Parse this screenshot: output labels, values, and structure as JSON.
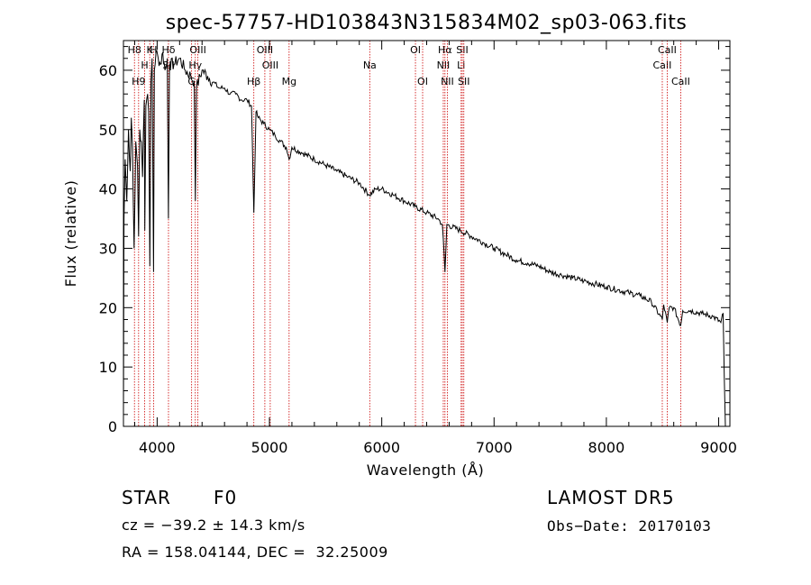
{
  "chart_data": {
    "type": "line",
    "title": "spec-57757-HD103843N315834M02_sp03-063.fits",
    "xlabel": "Wavelength (Å)",
    "ylabel": "Flux (relative)",
    "xlim": [
      3700,
      9100
    ],
    "ylim": [
      0,
      65
    ],
    "xticks": [
      4000,
      5000,
      6000,
      7000,
      8000,
      9000
    ],
    "yticks": [
      0,
      10,
      20,
      30,
      40,
      50,
      60
    ],
    "grid": false,
    "series": [
      {
        "color": "#000000",
        "points": [
          [
            3700,
            2
          ],
          [
            3705,
            35
          ],
          [
            3715,
            45
          ],
          [
            3730,
            38
          ],
          [
            3745,
            50
          ],
          [
            3760,
            43
          ],
          [
            3770,
            52
          ],
          [
            3780,
            47
          ],
          [
            3795,
            30
          ],
          [
            3810,
            48
          ],
          [
            3825,
            44
          ],
          [
            3835,
            32
          ],
          [
            3845,
            50
          ],
          [
            3860,
            48
          ],
          [
            3870,
            42
          ],
          [
            3885,
            55
          ],
          [
            3890,
            33
          ],
          [
            3900,
            54
          ],
          [
            3915,
            56
          ],
          [
            3925,
            53
          ],
          [
            3935,
            27
          ],
          [
            3945,
            58
          ],
          [
            3955,
            62
          ],
          [
            3968,
            26
          ],
          [
            3975,
            60
          ],
          [
            3990,
            63
          ],
          [
            4010,
            62
          ],
          [
            4030,
            61
          ],
          [
            4050,
            63
          ],
          [
            4070,
            60
          ],
          [
            4090,
            62
          ],
          [
            4100,
            35
          ],
          [
            4110,
            61
          ],
          [
            4150,
            61
          ],
          [
            4200,
            62
          ],
          [
            4250,
            60
          ],
          [
            4300,
            59
          ],
          [
            4330,
            58
          ],
          [
            4340,
            38
          ],
          [
            4350,
            57
          ],
          [
            4400,
            60
          ],
          [
            4450,
            59
          ],
          [
            4500,
            58
          ],
          [
            4550,
            57
          ],
          [
            4600,
            57
          ],
          [
            4650,
            56
          ],
          [
            4700,
            56
          ],
          [
            4750,
            55
          ],
          [
            4800,
            55
          ],
          [
            4840,
            54
          ],
          [
            4861,
            36
          ],
          [
            4880,
            53
          ],
          [
            4900,
            52
          ],
          [
            4950,
            51
          ],
          [
            5000,
            50
          ],
          [
            5050,
            49
          ],
          [
            5100,
            48
          ],
          [
            5150,
            47
          ],
          [
            5175,
            45
          ],
          [
            5200,
            47
          ],
          [
            5300,
            46
          ],
          [
            5400,
            45
          ],
          [
            5500,
            44
          ],
          [
            5600,
            43
          ],
          [
            5700,
            42
          ],
          [
            5800,
            41
          ],
          [
            5890,
            39
          ],
          [
            5950,
            40
          ],
          [
            6000,
            40
          ],
          [
            6100,
            39
          ],
          [
            6200,
            38
          ],
          [
            6300,
            37
          ],
          [
            6400,
            36
          ],
          [
            6500,
            35
          ],
          [
            6540,
            34
          ],
          [
            6563,
            26
          ],
          [
            6580,
            34
          ],
          [
            6700,
            33
          ],
          [
            6800,
            32
          ],
          [
            6900,
            31
          ],
          [
            7000,
            30
          ],
          [
            7100,
            29
          ],
          [
            7200,
            28
          ],
          [
            7300,
            27.5
          ],
          [
            7400,
            27
          ],
          [
            7500,
            26
          ],
          [
            7600,
            25.5
          ],
          [
            7700,
            25
          ],
          [
            7800,
            24.5
          ],
          [
            7900,
            24
          ],
          [
            8000,
            23.5
          ],
          [
            8100,
            23
          ],
          [
            8200,
            22.5
          ],
          [
            8300,
            22
          ],
          [
            8400,
            21
          ],
          [
            8498,
            18
          ],
          [
            8510,
            20.5
          ],
          [
            8542,
            17.5
          ],
          [
            8560,
            20
          ],
          [
            8600,
            20
          ],
          [
            8662,
            17
          ],
          [
            8680,
            19.5
          ],
          [
            8750,
            19.5
          ],
          [
            8850,
            19
          ],
          [
            8950,
            18.5
          ],
          [
            9020,
            17.5
          ],
          [
            9040,
            19
          ],
          [
            9050,
            8
          ],
          [
            9060,
            0
          ]
        ]
      }
    ],
    "line_marks": [
      {
        "w": 3798,
        "rows": [
          {
            "label": "H8",
            "row": 0
          }
        ]
      },
      {
        "w": 3835,
        "rows": [
          {
            "label": "H9",
            "row": 2
          }
        ]
      },
      {
        "w": 3889,
        "rows": [
          {
            "label": "H",
            "row": 1
          }
        ]
      },
      {
        "w": 3934,
        "rows": [
          {
            "label": "K",
            "row": 0
          }
        ]
      },
      {
        "w": 3968,
        "rows": [
          {
            "label": "H",
            "row": 0
          }
        ]
      },
      {
        "w": 4101,
        "rows": [
          {
            "label": "Hδ",
            "row": 0
          },
          {
            "label": "SII",
            "row": 1
          }
        ]
      },
      {
        "w": 4307,
        "rows": [
          {
            "label": "G",
            "row": 2
          }
        ]
      },
      {
        "w": 4340,
        "rows": [
          {
            "label": "Hγ",
            "row": 1
          }
        ]
      },
      {
        "w": 4363,
        "rows": [
          {
            "label": "OIII",
            "row": 0
          }
        ]
      },
      {
        "w": 4861,
        "rows": [
          {
            "label": "Hβ",
            "row": 2
          }
        ]
      },
      {
        "w": 4959,
        "rows": [
          {
            "label": "OIII",
            "row": 0
          }
        ]
      },
      {
        "w": 5007,
        "rows": [
          {
            "label": "OIII",
            "row": 1
          }
        ]
      },
      {
        "w": 5175,
        "rows": [
          {
            "label": "Mg",
            "row": 2
          }
        ]
      },
      {
        "w": 5893,
        "rows": [
          {
            "label": "Na",
            "row": 1
          }
        ]
      },
      {
        "w": 6300,
        "rows": [
          {
            "label": "OI",
            "row": 0
          }
        ]
      },
      {
        "w": 6364,
        "rows": [
          {
            "label": "OI",
            "row": 2
          }
        ]
      },
      {
        "w": 6548,
        "rows": [
          {
            "label": "NII",
            "row": 1
          }
        ]
      },
      {
        "w": 6563,
        "rows": [
          {
            "label": "Hα",
            "row": 0
          }
        ]
      },
      {
        "w": 6584,
        "rows": [
          {
            "label": "NII",
            "row": 2
          }
        ]
      },
      {
        "w": 6707,
        "rows": [
          {
            "label": "Li",
            "row": 1
          }
        ]
      },
      {
        "w": 6717,
        "rows": [
          {
            "label": "SII",
            "row": 0
          }
        ]
      },
      {
        "w": 6731,
        "rows": [
          {
            "label": "SII",
            "row": 2
          }
        ]
      },
      {
        "w": 8498,
        "rows": [
          {
            "label": "CaII",
            "row": 1
          }
        ]
      },
      {
        "w": 8542,
        "rows": [
          {
            "label": "CaII",
            "row": 0
          }
        ]
      },
      {
        "w": 8662,
        "rows": [
          {
            "label": "CaII",
            "row": 2
          }
        ]
      }
    ]
  },
  "info": {
    "class_label": "STAR",
    "subclass": "F0",
    "survey": "LAMOST DR5",
    "cz": "cz = −39.2 ± 14.3 km/s",
    "obs_date": "Obs−Date: 20170103",
    "radec": "RA = 158.04144, DEC =  32.25009"
  }
}
